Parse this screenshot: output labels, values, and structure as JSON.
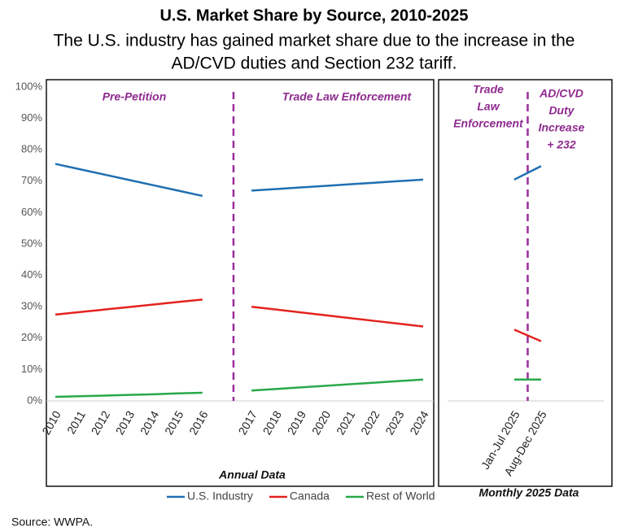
{
  "title": "U.S. Market Share by Source, 2010-2025",
  "subtitle": [
    "The U.S. industry has gained market share due to the increase in the",
    "AD/CVD duties and Section 232 tariff."
  ],
  "source": "Source:  WWPA.",
  "chart_data": [
    {
      "type": "line",
      "xlabel": "Annual Data",
      "categories": [
        "2010",
        "2011",
        "2012",
        "2013",
        "2014",
        "2015",
        "2016",
        null,
        "2017",
        "2018",
        "2019",
        "2020",
        "2021",
        "2022",
        "2023",
        "2024"
      ],
      "series": [
        {
          "name": "U.S. Industry",
          "color": "#1f6fb2",
          "values": [
            75.5,
            73.8,
            72.1,
            70.4,
            68.7,
            67.0,
            65.3,
            null,
            67.0,
            67.5,
            68.0,
            68.5,
            69.0,
            69.5,
            70.0,
            70.5
          ]
        },
        {
          "name": "Canada",
          "color": "#e3231f",
          "values": [
            27.5,
            28.3,
            29.1,
            29.9,
            30.7,
            31.5,
            32.3,
            null,
            30.0,
            29.1,
            28.2,
            27.3,
            26.4,
            25.5,
            24.6,
            23.7
          ]
        },
        {
          "name": "Rest of World",
          "color": "#2aa84a",
          "values": [
            1.3,
            1.5,
            1.7,
            1.9,
            2.1,
            2.4,
            2.6,
            null,
            3.3,
            3.8,
            4.3,
            4.8,
            5.3,
            5.8,
            6.3,
            6.8
          ]
        }
      ],
      "ylim": [
        0,
        100
      ],
      "yticks": [
        {
          "value": 0,
          "label": "0%"
        },
        {
          "value": 10,
          "label": "10%"
        },
        {
          "value": 20,
          "label": "20%"
        },
        {
          "value": 30,
          "label": "30%"
        },
        {
          "value": 40,
          "label": "40%"
        },
        {
          "value": 50,
          "label": "50%"
        },
        {
          "value": 60,
          "label": "60%"
        },
        {
          "value": 70,
          "label": "70%"
        },
        {
          "value": 80,
          "label": "80%"
        },
        {
          "value": 90,
          "label": "90%"
        },
        {
          "value": 100,
          "label": "100%"
        }
      ],
      "annotations": [
        [
          "Pre-Petition"
        ],
        [
          "Trade Law Enforcement"
        ]
      ],
      "legend": "bottom"
    },
    {
      "type": "line",
      "xlabel": "Monthly 2025 Data",
      "categories": [
        "Jan-Jul 2025",
        "Aug-Dec 2025"
      ],
      "series": [
        {
          "color": "#1f6fb2",
          "values": [
            70.5,
            74.8
          ]
        },
        {
          "color": "#e3231f",
          "values": [
            22.7,
            19.0
          ]
        },
        {
          "color": "#2aa84a",
          "values": [
            6.8,
            6.8
          ]
        }
      ],
      "ylim": [
        0,
        100
      ],
      "annotations": [
        [
          "Trade",
          "Law",
          "Enforcement"
        ],
        [
          "AD/CVD",
          "Duty",
          "Increase",
          "+ 232"
        ]
      ]
    }
  ]
}
